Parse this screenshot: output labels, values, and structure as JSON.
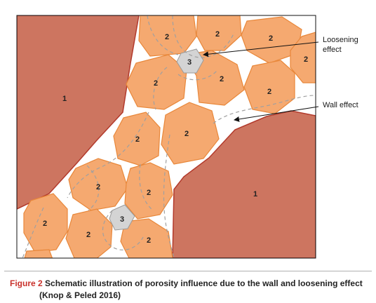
{
  "colors": {
    "wall_fill": "#cd7560",
    "wall_edge": "#b23a2c",
    "grain_fill": "#f5a970",
    "grain_edge": "#e8873a",
    "small_grain_fill": "#d4d4d4",
    "small_grain_edge": "#9a9a9a",
    "dashed_line": "#a0a0a0",
    "figure_number": "#c9322c"
  },
  "diagram": {
    "wall_labels": {
      "upper_left": "1",
      "lower_right": "1"
    },
    "large_grain_label": "2",
    "small_grain_label": "3",
    "annotations": {
      "loosening_line1": "Loosening",
      "loosening_line2": "effect",
      "wall": "Wall effect"
    }
  },
  "caption": {
    "figure_number": "Figure 2",
    "text": "Schematic illustration of porosity influence due to the wall and loosening effect",
    "reference": "(Knop & Peled 2016)"
  }
}
